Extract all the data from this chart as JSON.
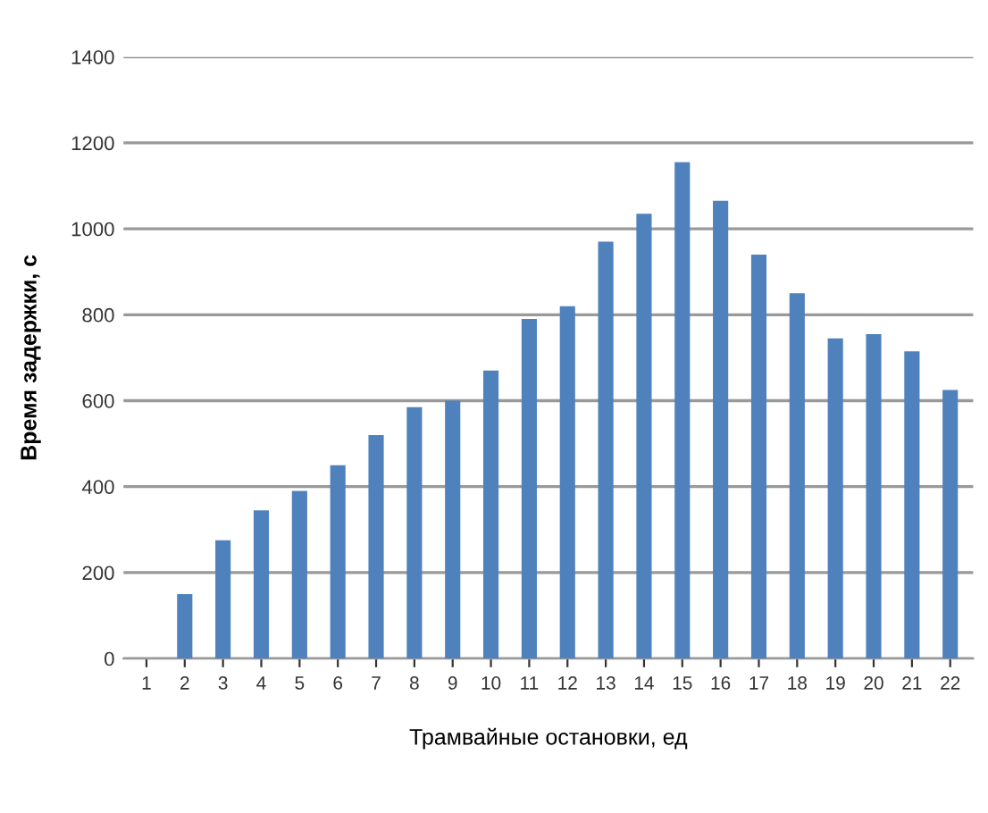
{
  "chart_data": {
    "type": "bar",
    "xlabel": "Трамвайные остановки, ед",
    "ylabel": "Время задержки, с",
    "categories": [
      "1",
      "2",
      "3",
      "4",
      "5",
      "6",
      "7",
      "8",
      "9",
      "10",
      "11",
      "12",
      "13",
      "14",
      "15",
      "16",
      "17",
      "18",
      "19",
      "20",
      "21",
      "22"
    ],
    "values": [
      0,
      150,
      275,
      345,
      390,
      450,
      520,
      585,
      600,
      670,
      790,
      820,
      970,
      1035,
      1155,
      1065,
      940,
      850,
      745,
      755,
      715,
      625
    ],
    "color": "#4f81bd",
    "ylim": [
      0,
      1400
    ],
    "yticks": [
      0,
      200,
      400,
      600,
      800,
      1000,
      1200,
      1400
    ],
    "grid": "y",
    "legend": false
  }
}
